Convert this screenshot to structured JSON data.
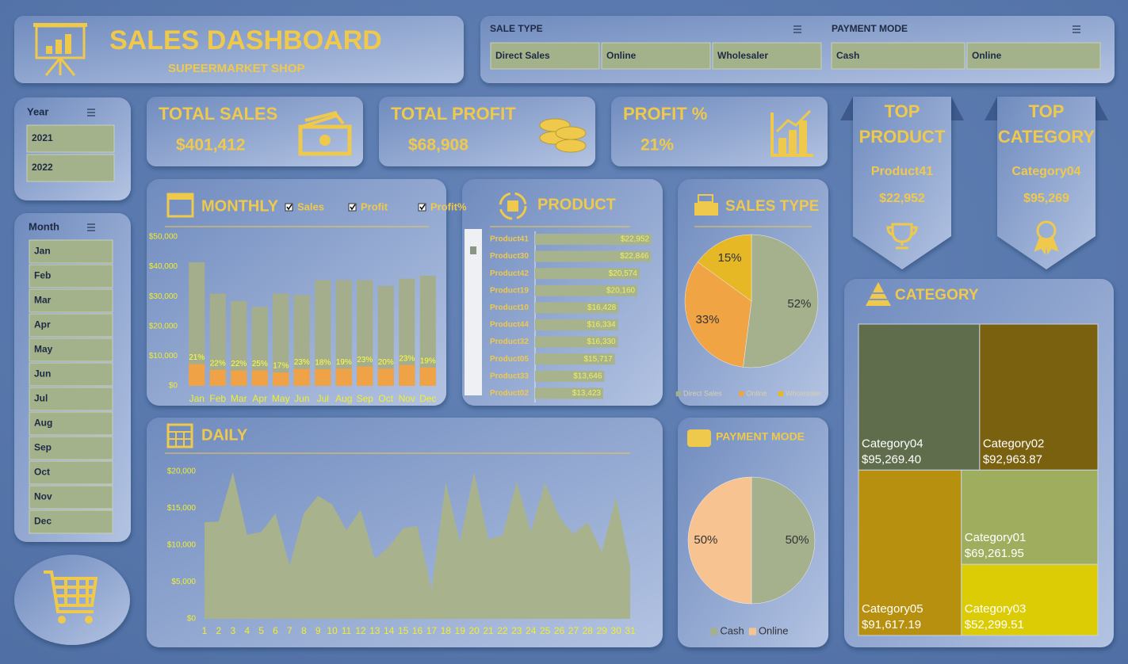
{
  "header": {
    "title": "SALES DASHBOARD",
    "subtitle": "SUPEERMARKET SHOP"
  },
  "slicers": {
    "sale_type": {
      "title": "SALE TYPE",
      "items": [
        "Direct Sales",
        "Online",
        "Wholesaler"
      ]
    },
    "payment_mode": {
      "title": "PAYMENT MODE",
      "items": [
        "Cash",
        "Online"
      ]
    },
    "year": {
      "title": "Year",
      "items": [
        "2021",
        "2022"
      ]
    },
    "month": {
      "title": "Month",
      "items": [
        "Jan",
        "Feb",
        "Mar",
        "Apr",
        "May",
        "Jun",
        "Jul",
        "Aug",
        "Sep",
        "Oct",
        "Nov",
        "Dec"
      ]
    }
  },
  "kpis": [
    {
      "label": "TOTAL SALES",
      "value": "$401,412"
    },
    {
      "label": "TOTAL PROFIT",
      "value": "$68,908"
    },
    {
      "label": "PROFIT %",
      "value": "21%"
    }
  ],
  "top_product": {
    "title": [
      "TOP",
      "PRODUCT"
    ],
    "name": "Product41",
    "value": "$22,952"
  },
  "top_category": {
    "title": [
      "TOP",
      "CATEGORY"
    ],
    "name": "Category04",
    "value": "$95,269"
  },
  "chart_data": [
    {
      "type": "bar",
      "title": "MONTHLY",
      "categories": [
        "Jan",
        "Feb",
        "Mar",
        "Apr",
        "May",
        "Jun",
        "Jul",
        "Aug",
        "Sep",
        "Oct",
        "Nov",
        "Dec"
      ],
      "series": [
        {
          "name": "Sales",
          "color": "#a4ae8c",
          "values": [
            41500,
            31000,
            28500,
            26500,
            31000,
            30500,
            35500,
            35500,
            35500,
            33500,
            36000,
            37000
          ]
        },
        {
          "name": "Profit",
          "color": "#f0a247",
          "values": [
            7300,
            5400,
            5200,
            5200,
            4500,
            5700,
            5600,
            5800,
            6500,
            5800,
            7000,
            6200
          ]
        },
        {
          "name": "Profit%",
          "color": "#ffff40",
          "values": [
            21,
            22,
            22,
            25,
            17,
            23,
            18,
            19,
            23,
            20,
            23,
            19
          ],
          "value_labels": [
            "21%",
            "22%",
            "22%",
            "25%",
            "17%",
            "23%",
            "18%",
            "19%",
            "23%",
            "20%",
            "23%",
            "19%"
          ]
        }
      ],
      "ylim": [
        0,
        50000
      ],
      "yticks": [
        {
          "value": 0,
          "label": "$0"
        },
        {
          "value": 10000,
          "label": "$10,000"
        },
        {
          "value": 20000,
          "label": "$20,000"
        },
        {
          "value": 30000,
          "label": "$30,000"
        },
        {
          "value": 40000,
          "label": "$40,000"
        },
        {
          "value": 50000,
          "label": "$50,000"
        }
      ]
    },
    {
      "type": "bar",
      "orientation": "horizontal",
      "title": "PRODUCT",
      "color": "#a6b38c",
      "categories": [
        "Product41",
        "Product30",
        "Product42",
        "Product19",
        "Product10",
        "Product44",
        "Product32",
        "Product05",
        "Product33",
        "Product02"
      ],
      "values": [
        22952,
        22846,
        20574,
        20160,
        16428,
        16334,
        16330,
        15717,
        13646,
        13423
      ],
      "value_labels": [
        "$22,952",
        "$22,846",
        "$20,574",
        "$20,160",
        "$16,428",
        "$16,334",
        "$16,330",
        "$15,717",
        "$13,646",
        "$13,423"
      ]
    },
    {
      "type": "pie",
      "title": "SALES TYPE",
      "categories": [
        "Direct Sales",
        "Online",
        "Wholesaler"
      ],
      "values": [
        52,
        33,
        15
      ],
      "value_labels": [
        "52%",
        "33%",
        "15%"
      ],
      "colors": [
        "#a5b08d",
        "#f0a444",
        "#e6b826"
      ],
      "legend": "bottom"
    },
    {
      "type": "area",
      "title": "DAILY",
      "color": "#a8b38d",
      "x": [
        1,
        2,
        3,
        4,
        5,
        6,
        7,
        8,
        9,
        10,
        11,
        12,
        13,
        14,
        15,
        16,
        17,
        18,
        19,
        20,
        21,
        22,
        23,
        24,
        25,
        26,
        27,
        28,
        29,
        30,
        31
      ],
      "values": [
        13100,
        13200,
        19900,
        11400,
        11800,
        14300,
        7200,
        14300,
        16700,
        15500,
        12000,
        14800,
        8100,
        9800,
        12300,
        12600,
        3900,
        18500,
        10400,
        19900,
        10800,
        11300,
        18600,
        11800,
        18500,
        13800,
        11500,
        13100,
        9100,
        16500,
        7100
      ],
      "xlim": [
        1,
        31
      ],
      "ylim": [
        0,
        20000
      ],
      "yticks": [
        {
          "value": 0,
          "label": "$0"
        },
        {
          "value": 5000,
          "label": "$5,000"
        },
        {
          "value": 10000,
          "label": "$10,000"
        },
        {
          "value": 15000,
          "label": "$15,000"
        },
        {
          "value": 20000,
          "label": "$20,000"
        }
      ]
    },
    {
      "type": "pie",
      "title": "PAYMENT MODE",
      "categories": [
        "Cash",
        "Online"
      ],
      "values": [
        50,
        50
      ],
      "value_labels": [
        "50%",
        "50%"
      ],
      "colors": [
        "#a5b08d",
        "#f7c491"
      ],
      "legend": "bottom"
    },
    {
      "type": "treemap",
      "title": "CATEGORY",
      "categories": [
        "Category04",
        "Category02",
        "Category05",
        "Category01",
        "Category03"
      ],
      "values": [
        95269.4,
        92963.87,
        91617.19,
        69261.95,
        52299.51
      ],
      "value_labels": [
        "$95,269.40",
        "$92,963.87",
        "$91,617.19",
        "$69,261.95",
        "$52,299.51"
      ],
      "colors": [
        "#5f6d4d",
        "#7a6110",
        "#b8900f",
        "#9fae5e",
        "#dccc06"
      ]
    }
  ]
}
